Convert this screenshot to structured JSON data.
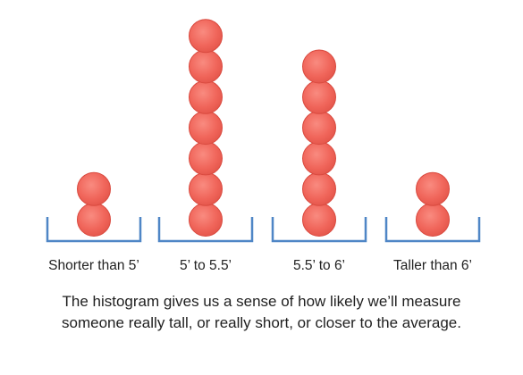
{
  "chart_data": {
    "type": "bar",
    "categories": [
      "Shorter than 5’",
      "5’ to 5.5’",
      "5.5’ to 6’",
      "Taller than 6’"
    ],
    "values": [
      2,
      7,
      6,
      2
    ],
    "title": "",
    "xlabel": "",
    "ylabel": ""
  },
  "colors": {
    "ball": "#f0655a",
    "ball_edge": "#d94a3f",
    "bin": "#4f86c6"
  },
  "caption": "The histogram gives us a sense of how likely we’ll measure someone really tall, or really short, or closer to the average."
}
